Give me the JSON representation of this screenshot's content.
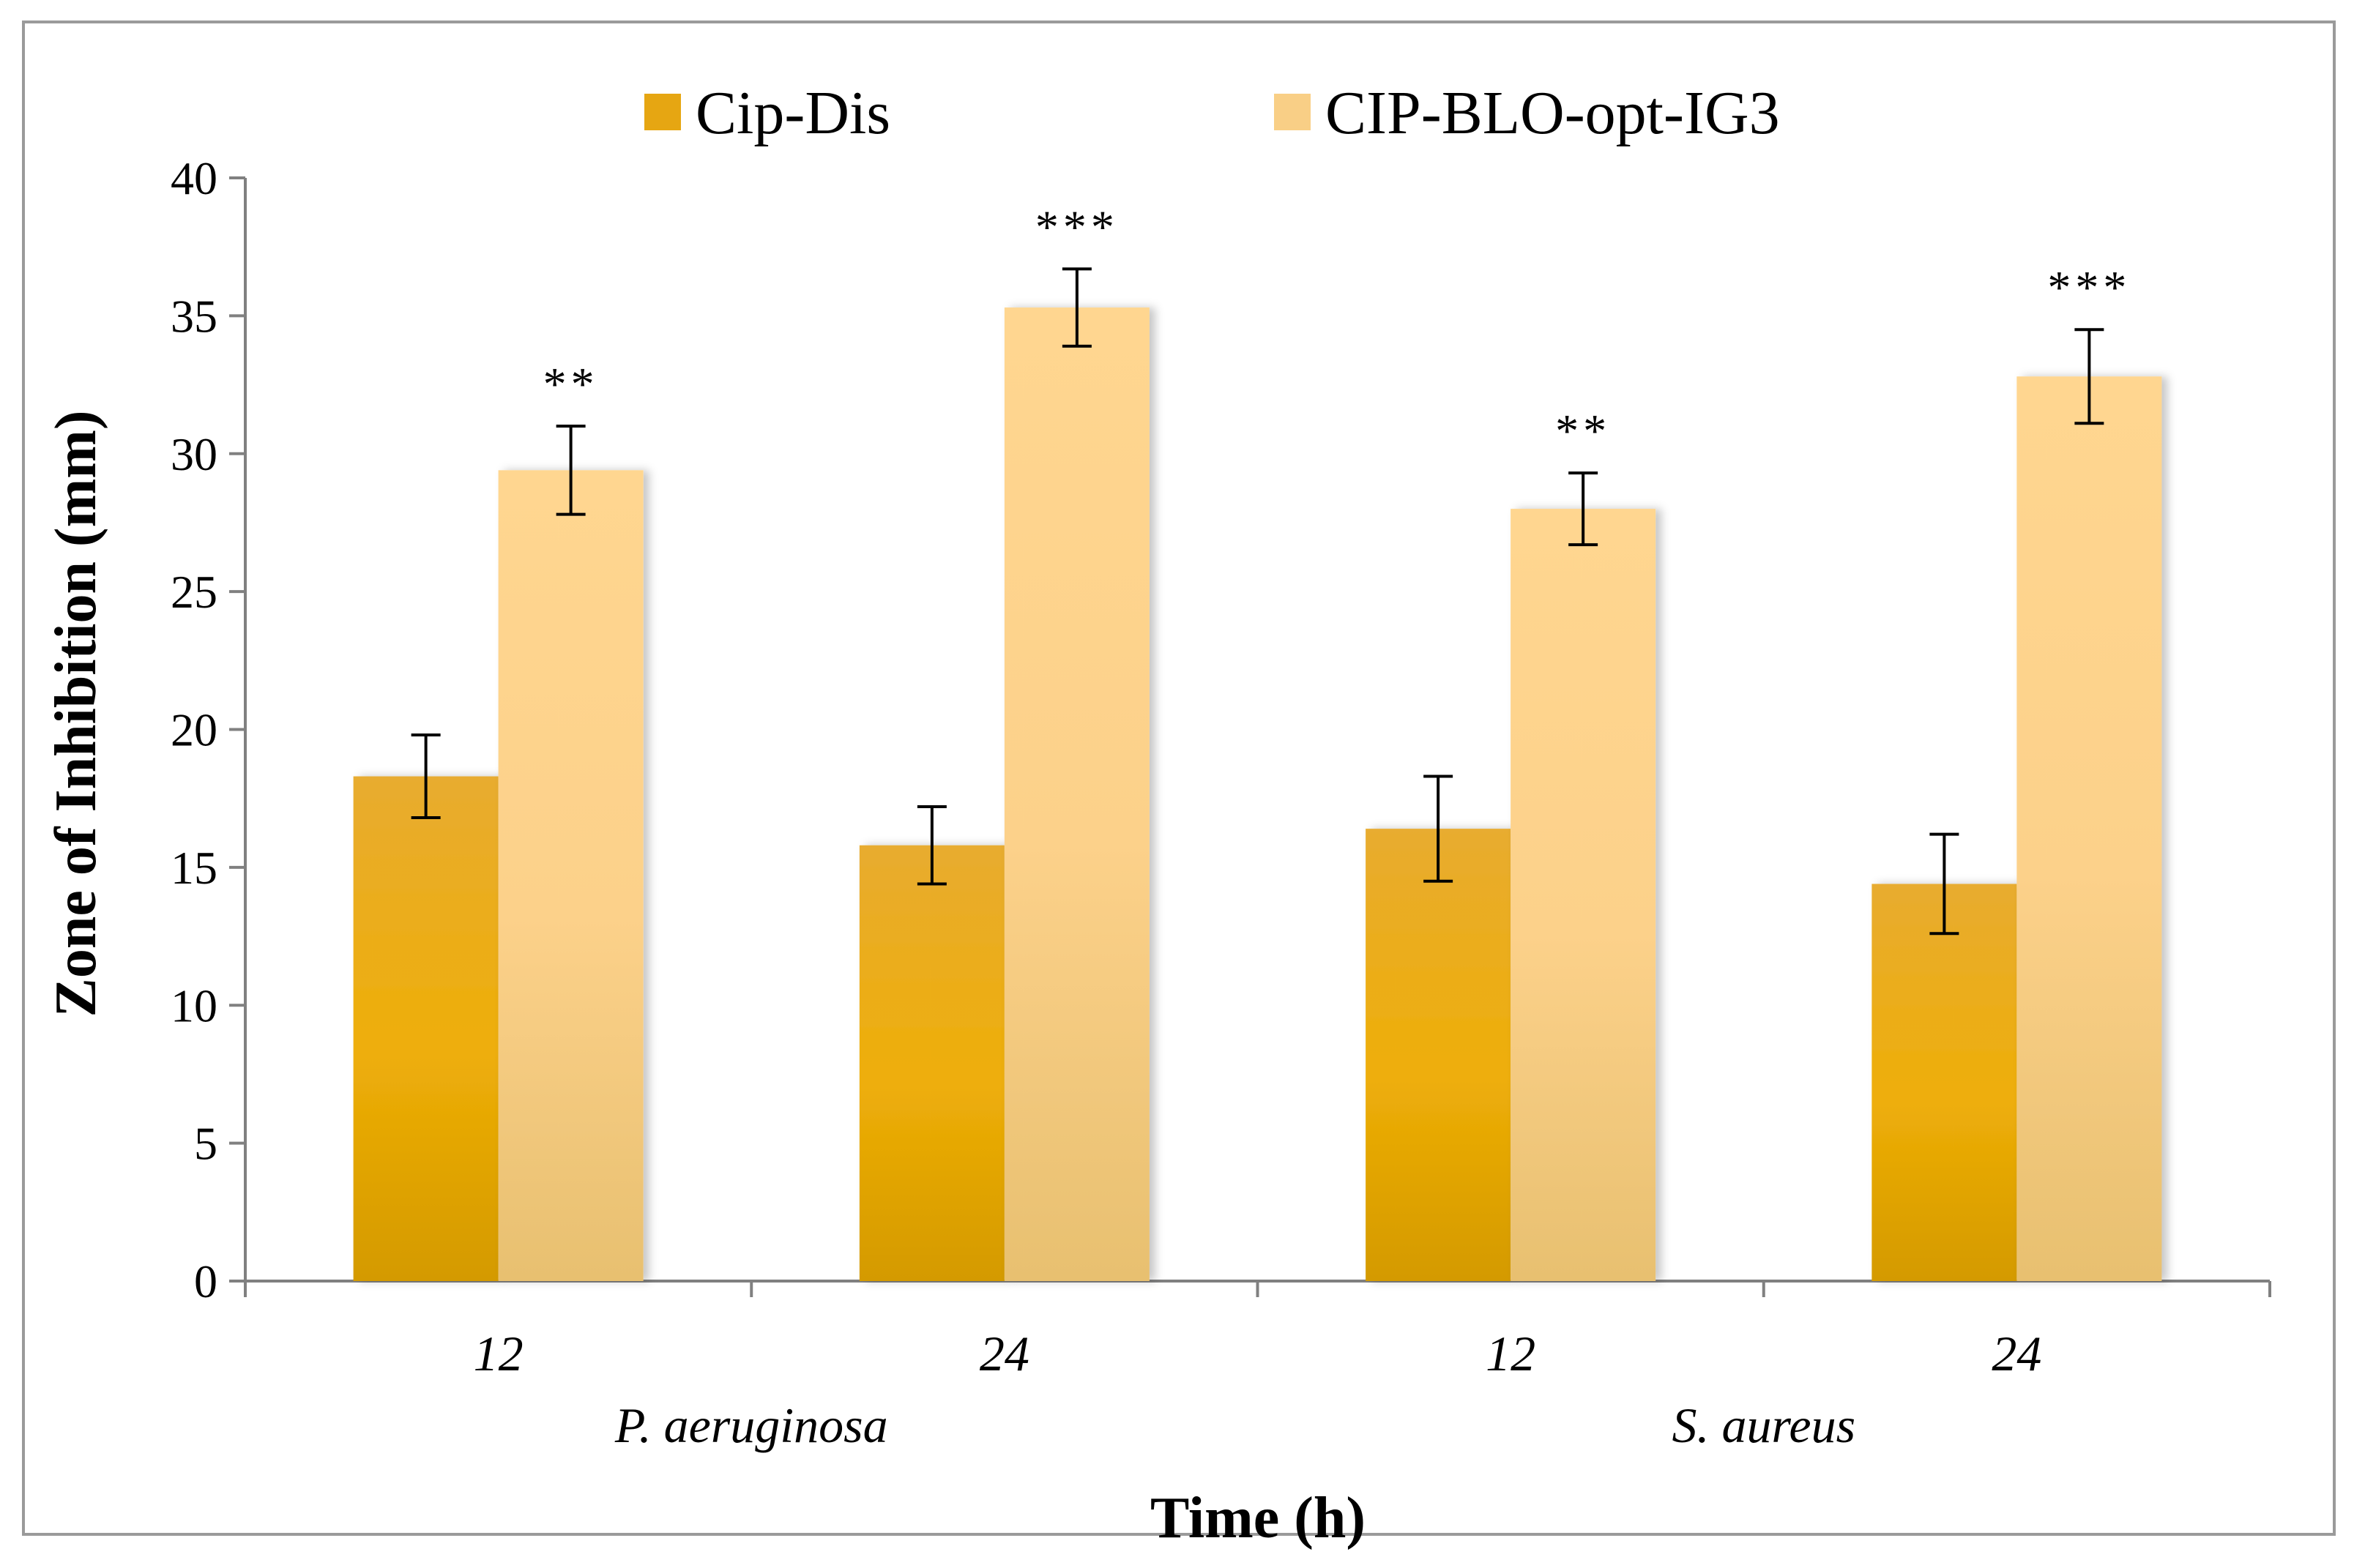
{
  "chart_data": {
    "type": "bar",
    "title": "",
    "xlabel": "Time (h)",
    "ylabel": "Zone of Inhibition (mm)",
    "ylim": [
      0,
      40
    ],
    "yticks": [
      0,
      5,
      10,
      15,
      20,
      25,
      30,
      35,
      40
    ],
    "categories": [
      "12",
      "24",
      "12",
      "24"
    ],
    "groups": [
      {
        "label": "P. aeruginosa",
        "span": [
          0,
          1
        ]
      },
      {
        "label": "S. aureus",
        "span": [
          2,
          3
        ]
      }
    ],
    "legend_position": "top-center",
    "grid": false,
    "series": [
      {
        "name": "Cip-Dis",
        "color_top": "#e8ac30",
        "color_mid": "#eeae08",
        "color_bottom": "#d49a00",
        "values": [
          18.3,
          15.8,
          16.4,
          14.4
        ],
        "errors": [
          1.5,
          1.4,
          1.9,
          1.8
        ],
        "annotations": [
          "",
          "",
          "",
          ""
        ]
      },
      {
        "name": "CIP-BLO-opt-IG3",
        "color_top": "#ffd690",
        "color_mid": "#fcd18a",
        "color_bottom": "#e8c070",
        "values": [
          29.4,
          35.3,
          28.0,
          32.8
        ],
        "errors": [
          1.6,
          1.4,
          1.3,
          1.7
        ],
        "annotations": [
          "**",
          "***",
          "**",
          "***"
        ]
      }
    ]
  }
}
